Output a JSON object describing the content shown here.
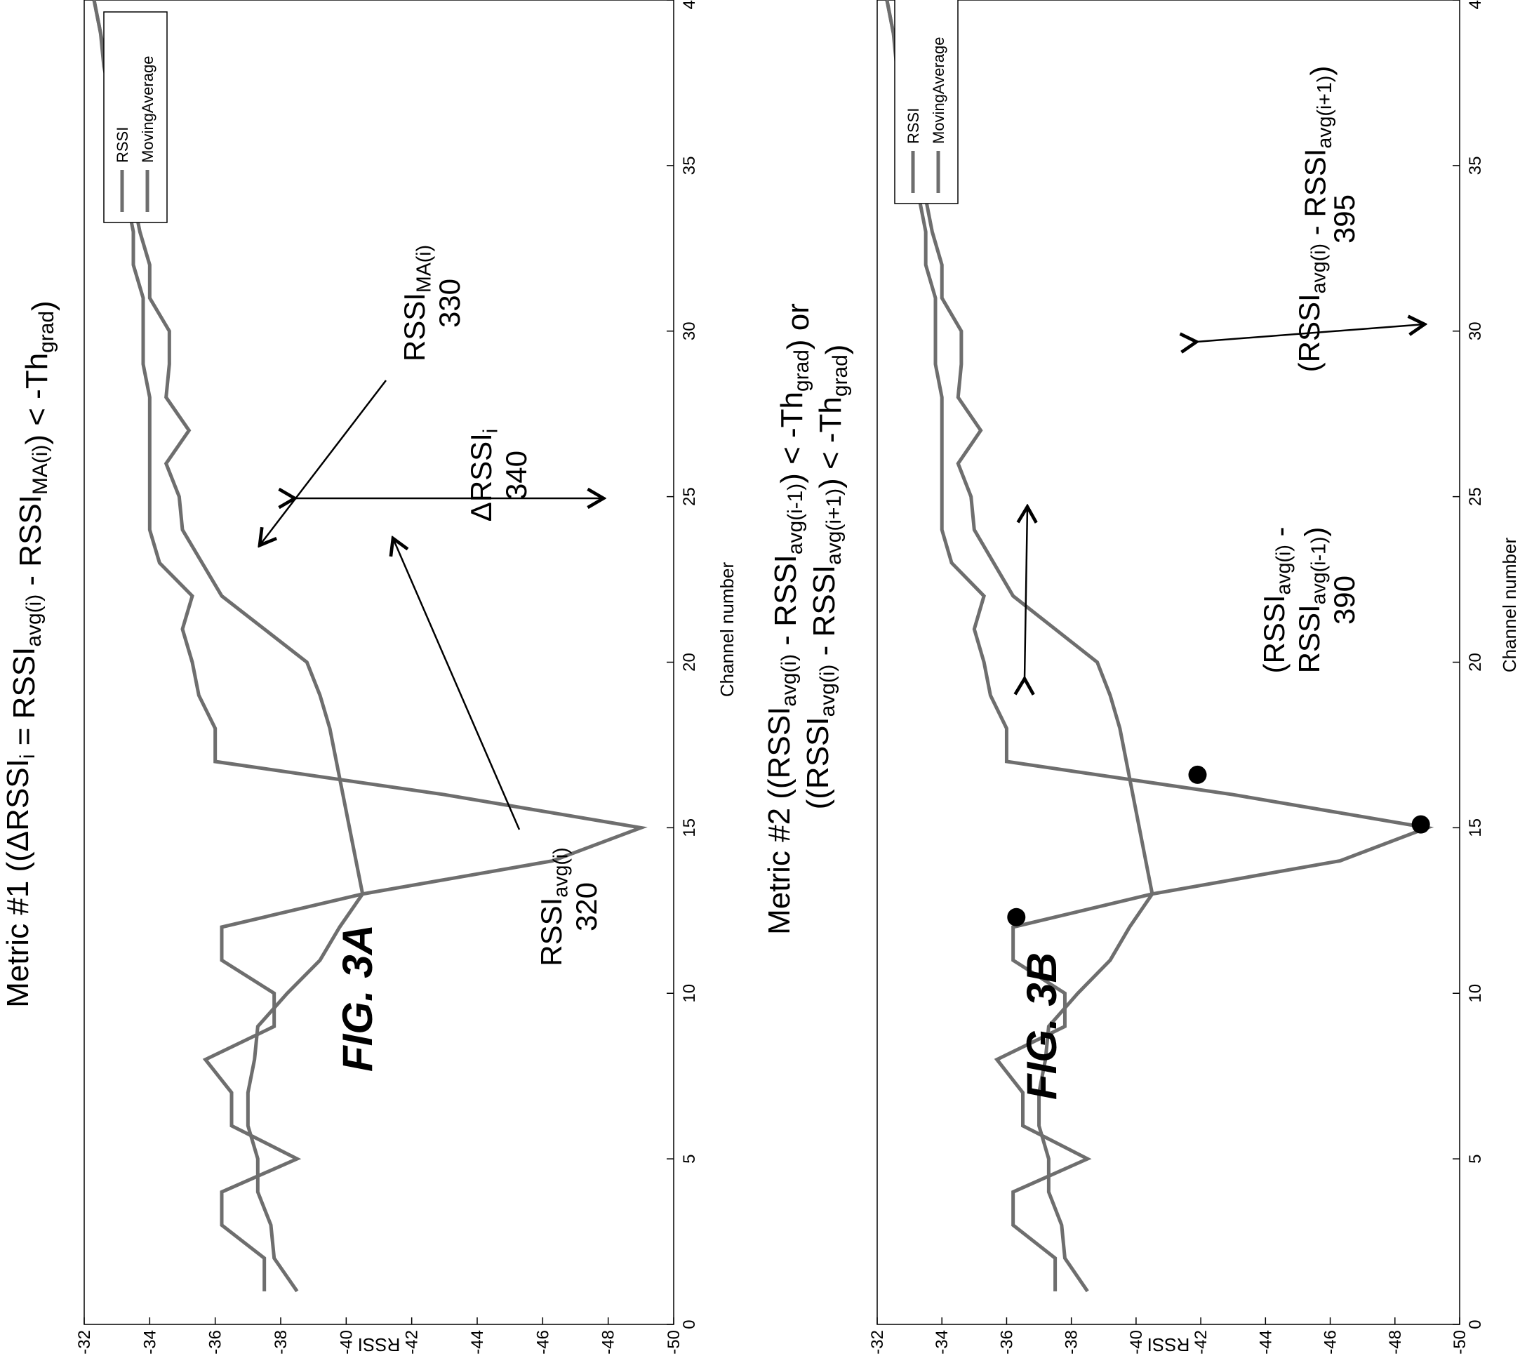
{
  "chart_data": [
    {
      "id": "fig3a",
      "type": "line",
      "figure_label": "FIG. 3A",
      "title_parts": [
        {
          "t": "Metric #1 ((ΔRSSI"
        },
        {
          "t": "i",
          "sub": true
        },
        {
          "t": " = RSSI"
        },
        {
          "t": "avg(i)",
          "sub": true
        },
        {
          "t": " - RSSI"
        },
        {
          "t": "MA(i)",
          "sub": true
        },
        {
          "t": ") < -Th"
        },
        {
          "t": "grad",
          "sub": true
        },
        {
          "t": ")"
        }
      ],
      "xlabel": "Channel number",
      "ylabel": "RSSI",
      "xlim": [
        0,
        40
      ],
      "ylim": [
        -50,
        -32
      ],
      "xticks": [
        "0",
        "5",
        "10",
        "15",
        "20",
        "25",
        "30",
        "35",
        "40"
      ],
      "yticks": [
        "-32",
        "-34",
        "-36",
        "-38",
        "-40",
        "-42",
        "-44",
        "-46",
        "-48",
        "-50"
      ],
      "legend": [
        "RSSI",
        "MovingAverage"
      ],
      "legend_position": "top-left",
      "series": [
        {
          "name": "RSSI",
          "x": [
            1,
            2,
            3,
            4,
            5,
            6,
            7,
            8,
            9,
            10,
            11,
            12,
            13,
            14,
            15,
            16,
            17,
            18,
            19,
            20,
            21,
            22,
            23,
            24,
            25,
            26,
            27,
            28,
            29,
            30,
            31,
            32,
            33,
            34,
            35,
            36,
            37,
            38,
            39,
            40
          ],
          "values": [
            -37.5,
            -37.5,
            -36.2,
            -36.2,
            -38.5,
            -36.5,
            -36.5,
            -35.7,
            -37.8,
            -37.8,
            -36.2,
            -36.2,
            -40.5,
            -46.3,
            -49.0,
            -43.0,
            -36.0,
            -36.0,
            -35.5,
            -35.3,
            -35.0,
            -35.3,
            -34.3,
            -34.0,
            -34.0,
            -34.0,
            -34.0,
            -34.0,
            -33.8,
            -33.8,
            -33.8,
            -33.5,
            -33.5,
            -33.3,
            -33.3,
            -33.0,
            -33.0,
            -32.7,
            -32.5,
            -32.3
          ]
        },
        {
          "name": "MovingAverage",
          "x": [
            1,
            2,
            3,
            4,
            5,
            6,
            7,
            8,
            9,
            10,
            11,
            12,
            13,
            14,
            15,
            16,
            17,
            18,
            19,
            20,
            21,
            22,
            23,
            24,
            25,
            26,
            27,
            28,
            29,
            30,
            31,
            32,
            33,
            34,
            35,
            36,
            37,
            38,
            39,
            40
          ],
          "values": [
            -38.5,
            -37.8,
            -37.7,
            -37.3,
            -37.3,
            -37.0,
            -37.0,
            -37.2,
            -37.3,
            -38.2,
            -39.2,
            -39.8,
            -40.5,
            -40.3,
            -40.1,
            -39.9,
            -39.7,
            -39.5,
            -39.2,
            -38.8,
            -37.5,
            -36.2,
            -35.6,
            -35.0,
            -34.9,
            -34.5,
            -35.2,
            -34.5,
            -34.6,
            -34.6,
            -34.0,
            -34.0,
            -33.7,
            -33.5,
            -33.2,
            -33.0,
            -32.8,
            -32.6,
            -32.5,
            -32.3
          ]
        }
      ],
      "annotations": [
        {
          "text_parts": [
            {
              "t": "RSSI"
            },
            {
              "t": "avg(i)",
              "sub": true
            }
          ],
          "number": "320"
        },
        {
          "text_parts": [
            {
              "t": "RSSI"
            },
            {
              "t": "MA(i)",
              "sub": true
            }
          ],
          "number": "330"
        },
        {
          "text_parts": [
            {
              "t": "ΔRSSI"
            },
            {
              "t": "i",
              "sub": true
            }
          ],
          "number": "340"
        }
      ]
    },
    {
      "id": "fig3b",
      "type": "line",
      "figure_label": "FIG. 3B",
      "title_line1_parts": [
        {
          "t": "Metric #2 ((RSSI"
        },
        {
          "t": "avg(i)",
          "sub": true
        },
        {
          "t": " - RSSI"
        },
        {
          "t": "avg(i-1)",
          "sub": true
        },
        {
          "t": ") < -Th"
        },
        {
          "t": "grad",
          "sub": true
        },
        {
          "t": ") or"
        }
      ],
      "title_line2_parts": [
        {
          "t": "((RSSI"
        },
        {
          "t": "avg(i)",
          "sub": true
        },
        {
          "t": " - RSSI"
        },
        {
          "t": "avg(i+1)",
          "sub": true
        },
        {
          "t": ") < -Th"
        },
        {
          "t": "grad",
          "sub": true
        },
        {
          "t": ")"
        }
      ],
      "xlabel": "Channel number",
      "ylabel": "RSSI",
      "xlim": [
        0,
        40
      ],
      "ylim": [
        -50,
        -32
      ],
      "xticks": [
        "0",
        "5",
        "10",
        "15",
        "20",
        "25",
        "30",
        "35",
        "40"
      ],
      "yticks": [
        "-32",
        "-34",
        "-36",
        "-38",
        "-40",
        "-42",
        "-44",
        "-46",
        "-48",
        "-50"
      ],
      "legend": [
        "RSSI",
        "MovingAverage"
      ],
      "legend_position": "top-left",
      "highlighted_points": [
        {
          "x": 12.3,
          "y": -36.3
        },
        {
          "x": 15.1,
          "y": -48.8
        },
        {
          "x": 16.6,
          "y": -41.9
        }
      ],
      "series": [
        {
          "name": "RSSI",
          "x": [
            1,
            2,
            3,
            4,
            5,
            6,
            7,
            8,
            9,
            10,
            11,
            12,
            13,
            14,
            15,
            16,
            17,
            18,
            19,
            20,
            21,
            22,
            23,
            24,
            25,
            26,
            27,
            28,
            29,
            30,
            31,
            32,
            33,
            34,
            35,
            36,
            37,
            38,
            39,
            40
          ],
          "values": [
            -37.5,
            -37.5,
            -36.2,
            -36.2,
            -38.5,
            -36.5,
            -36.5,
            -35.7,
            -37.8,
            -37.8,
            -36.2,
            -36.2,
            -40.5,
            -46.3,
            -49.0,
            -43.0,
            -36.0,
            -36.0,
            -35.5,
            -35.3,
            -35.0,
            -35.3,
            -34.3,
            -34.0,
            -34.0,
            -34.0,
            -34.0,
            -34.0,
            -33.8,
            -33.8,
            -33.8,
            -33.5,
            -33.5,
            -33.3,
            -33.3,
            -33.0,
            -33.0,
            -32.7,
            -32.5,
            -32.3
          ]
        },
        {
          "name": "MovingAverage",
          "x": [
            1,
            2,
            3,
            4,
            5,
            6,
            7,
            8,
            9,
            10,
            11,
            12,
            13,
            14,
            15,
            16,
            17,
            18,
            19,
            20,
            21,
            22,
            23,
            24,
            25,
            26,
            27,
            28,
            29,
            30,
            31,
            32,
            33,
            34,
            35,
            36,
            37,
            38,
            39,
            40
          ],
          "values": [
            -38.5,
            -37.8,
            -37.7,
            -37.3,
            -37.3,
            -37.0,
            -37.0,
            -37.2,
            -37.3,
            -38.2,
            -39.2,
            -39.8,
            -40.5,
            -40.3,
            -40.1,
            -39.9,
            -39.7,
            -39.5,
            -39.2,
            -38.8,
            -37.5,
            -36.2,
            -35.6,
            -35.0,
            -34.9,
            -34.5,
            -35.2,
            -34.5,
            -34.6,
            -34.6,
            -34.0,
            -34.0,
            -33.7,
            -33.5,
            -33.2,
            -33.0,
            -32.8,
            -32.6,
            -32.5,
            -32.3
          ]
        }
      ],
      "annotations": [
        {
          "line1_parts": [
            {
              "t": "(RSSI"
            },
            {
              "t": "avg(i)",
              "sub": true
            },
            {
              "t": " -"
            }
          ],
          "line2_parts": [
            {
              "t": "RSSI"
            },
            {
              "t": "avg(i-1)",
              "sub": true
            },
            {
              "t": ")"
            }
          ],
          "number": "390"
        },
        {
          "line1_parts": [
            {
              "t": "(RSSI"
            },
            {
              "t": "avg(i)",
              "sub": true
            },
            {
              "t": " - RSSI"
            },
            {
              "t": "avg(i+1)",
              "sub": true
            },
            {
              "t": ")"
            }
          ],
          "number": "395"
        }
      ]
    }
  ]
}
